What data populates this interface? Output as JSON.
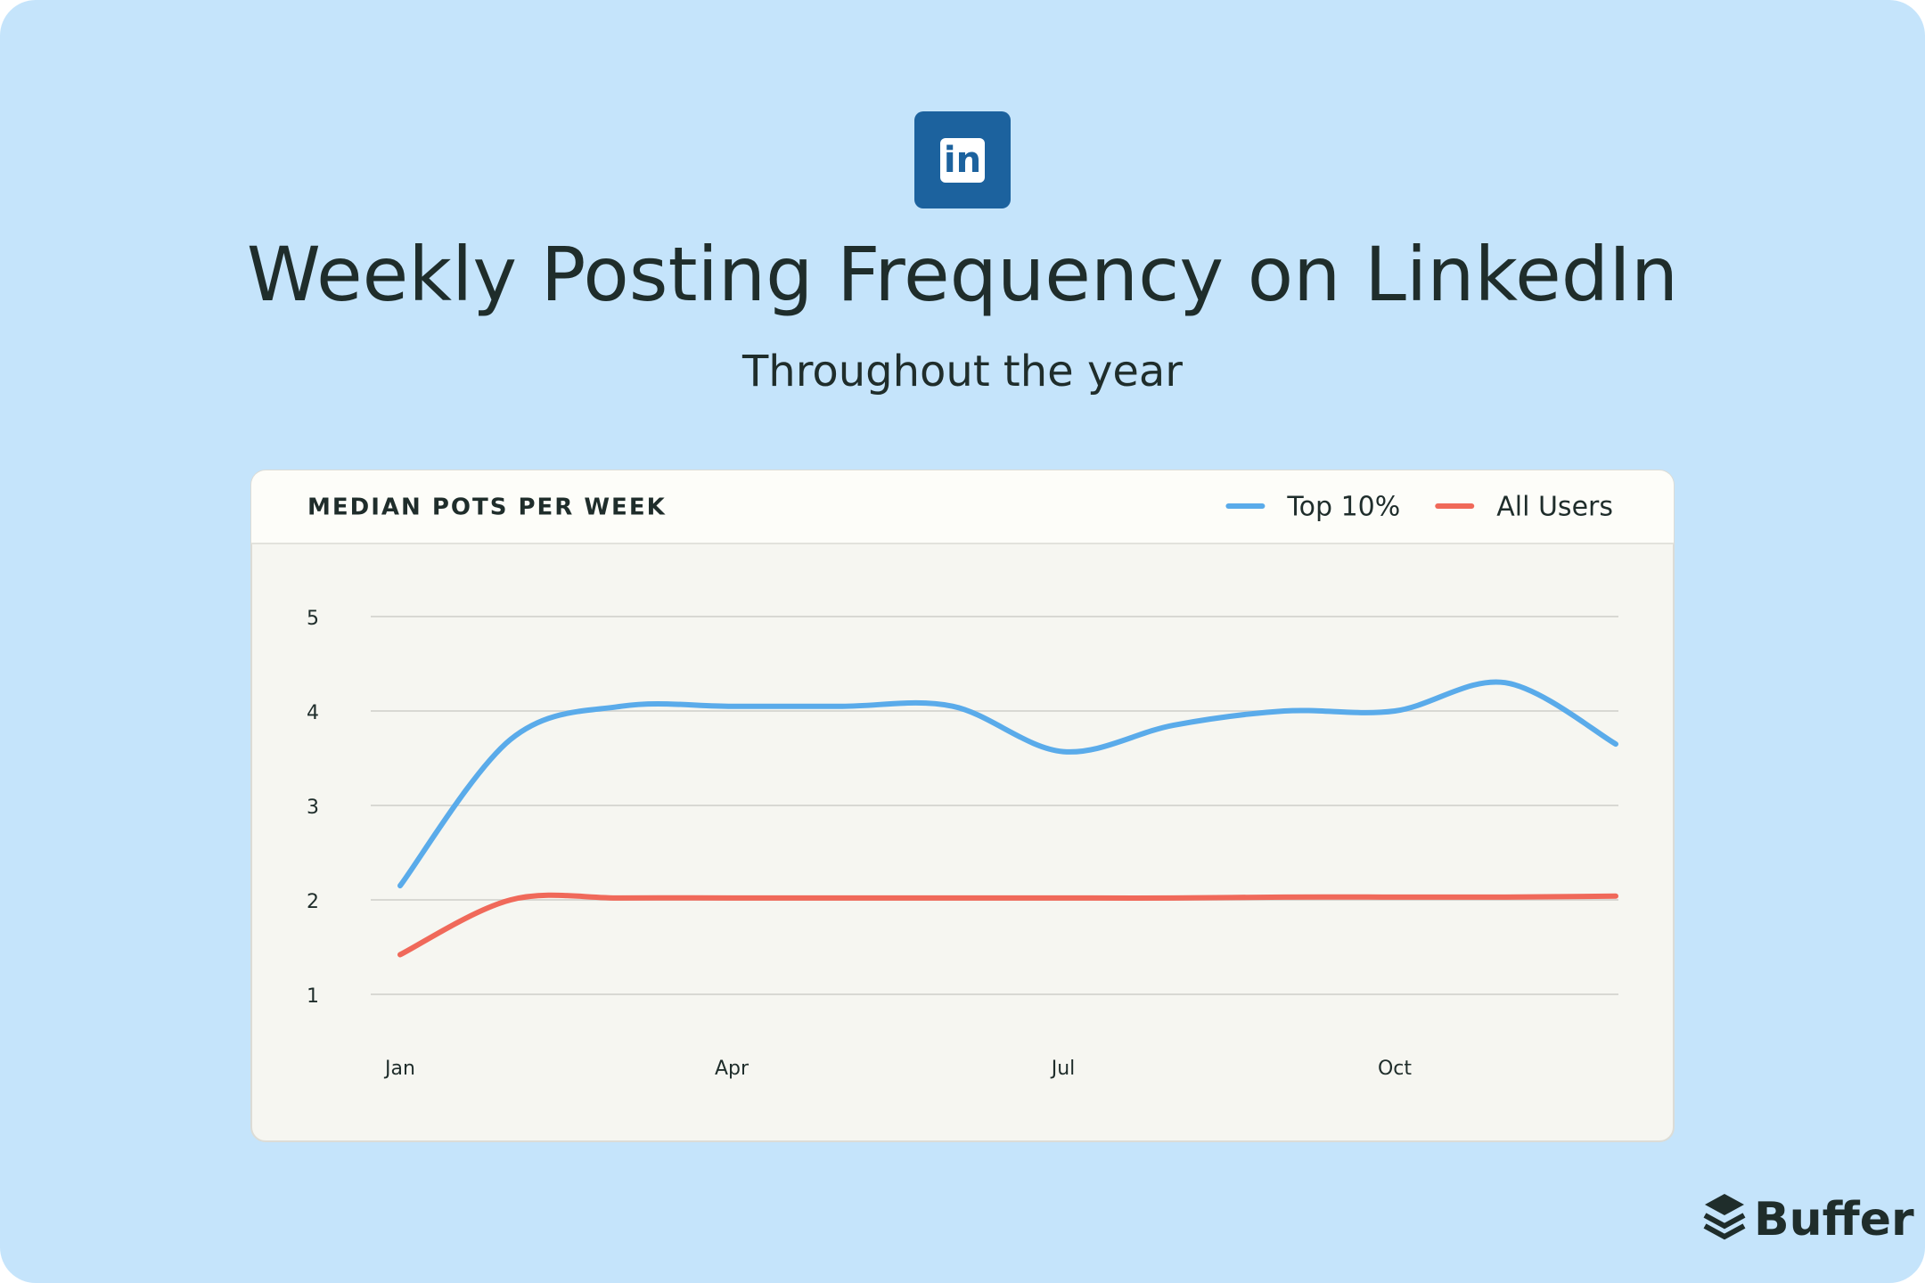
{
  "brand_icon": "in",
  "chart_data": {
    "type": "line",
    "title": "Weekly Posting Frequency on LinkedIn",
    "subtitle": "Throughout the year",
    "panel_title": "MEDIAN POTS PER WEEK",
    "categories": [
      "Jan",
      null,
      null,
      "Apr",
      null,
      null,
      "Jul",
      null,
      null,
      "Oct",
      null,
      null
    ],
    "series": [
      {
        "name": "Top 10%",
        "color": "#5aabea",
        "values": [
          2.15,
          3.7,
          4.05,
          4.05,
          4.05,
          4.05,
          3.57,
          3.85,
          4.0,
          4.0,
          4.3,
          3.65
        ]
      },
      {
        "name": "All Users",
        "color": "#f0695a",
        "values": [
          1.42,
          2.0,
          2.02,
          2.02,
          2.02,
          2.02,
          2.02,
          2.02,
          2.03,
          2.03,
          2.03,
          2.04
        ]
      }
    ],
    "ylim": [
      1,
      5
    ],
    "yticks": [
      1,
      2,
      3,
      4,
      5
    ],
    "grid": true,
    "legend": "top-right"
  },
  "footer": {
    "logo": "Buffer"
  }
}
